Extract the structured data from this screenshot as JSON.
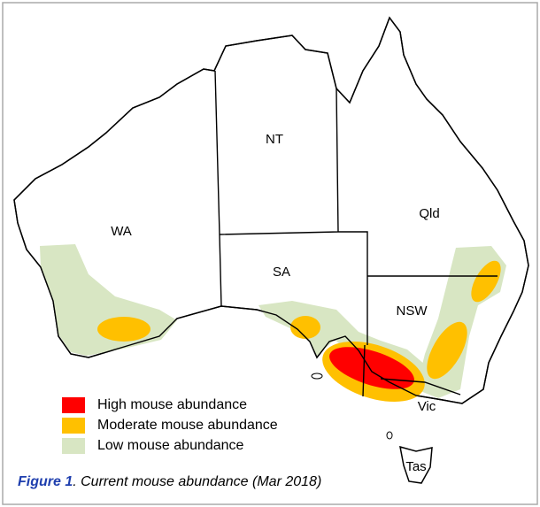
{
  "map": {
    "regions": [
      {
        "label": "WA"
      },
      {
        "label": "NT"
      },
      {
        "label": "Qld"
      },
      {
        "label": "SA"
      },
      {
        "label": "NSW"
      },
      {
        "label": "Vic"
      },
      {
        "label": "Tas"
      }
    ],
    "legend": [
      {
        "label": "High mouse abundance",
        "color": "#ff0000"
      },
      {
        "label": "Moderate mouse abundance",
        "color": "#ffc000"
      },
      {
        "label": "Low mouse abundance",
        "color": "#d8e6c3"
      }
    ],
    "caption": {
      "figure": "Figure 1",
      "text": ". Current mouse abundance (Mar 2018)"
    }
  }
}
